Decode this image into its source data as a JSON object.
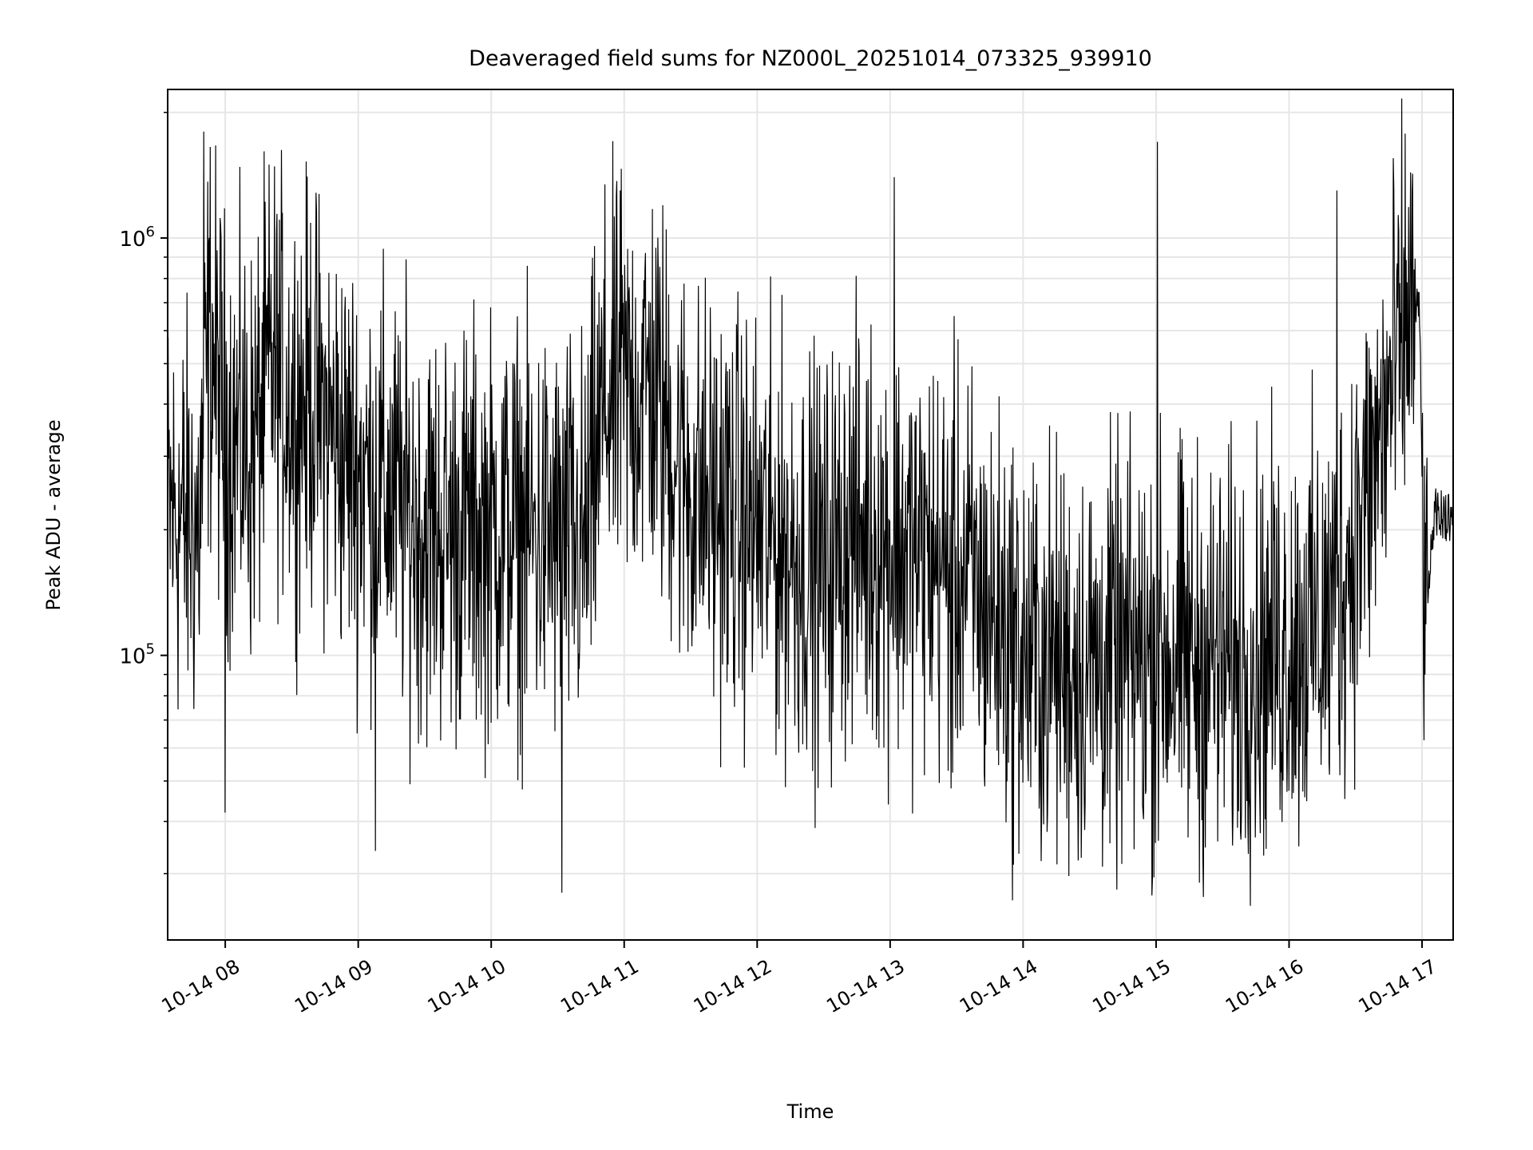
{
  "chart_data": {
    "type": "line",
    "title": "Deaveraged field sums for NZ000L_20251014_073325_939910",
    "xlabel": "Time",
    "ylabel": "Peak ADU - average",
    "yscale": "log",
    "ylim": [
      20800,
      2270000
    ],
    "xlim_hours": [
      7.567,
      17.234
    ],
    "grid": true,
    "x_tick_labels": [
      "10-14 08",
      "10-14 09",
      "10-14 10",
      "10-14 11",
      "10-14 12",
      "10-14 13",
      "10-14 14",
      "10-14 15",
      "10-14 16",
      "10-14 17"
    ],
    "x_tick_hours": [
      8,
      9,
      10,
      11,
      12,
      13,
      14,
      15,
      16,
      17
    ],
    "y_ticks": [
      {
        "value": 100000,
        "base": "10",
        "exp": "5"
      },
      {
        "value": 1000000,
        "base": "10",
        "exp": "6"
      }
    ],
    "series": [
      {
        "name": "field sums",
        "color": "#000000",
        "trend_hours": [
          7.57,
          7.8,
          7.88,
          8.0,
          8.2,
          8.35,
          8.5,
          8.65,
          8.9,
          9.5,
          10.2,
          10.7,
          10.85,
          11.2,
          11.5,
          12.0,
          12.5,
          12.7,
          13.3,
          13.6,
          14.0,
          14.5,
          15.0,
          15.6,
          16.3,
          16.6,
          16.9,
          16.98,
          17.02,
          17.1,
          17.23
        ],
        "trend_median": [
          220000,
          200000,
          600000,
          350000,
          300000,
          500000,
          400000,
          420000,
          300000,
          200000,
          200000,
          180000,
          400000,
          450000,
          250000,
          200000,
          160000,
          200000,
          170000,
          150000,
          100000,
          95000,
          100000,
          95000,
          120000,
          250000,
          650000,
          700000,
          120000,
          220000,
          210000
        ],
        "log10_noise_spread": 0.38,
        "notable_peaks": [
          [
            7.84,
            1800000
          ],
          [
            10.97,
            1300000
          ],
          [
            13.03,
            1400000
          ],
          [
            15.01,
            1700000
          ],
          [
            16.36,
            1300000
          ],
          [
            16.91,
            1000000
          ]
        ],
        "notable_minima": [
          [
            8.0,
            42000
          ],
          [
            9.13,
            34000
          ],
          [
            10.53,
            27000
          ],
          [
            13.46,
            48000
          ],
          [
            14.44,
            44000
          ]
        ]
      }
    ]
  },
  "colors": {
    "grid": "#e6e6e6",
    "axes": "#000000",
    "line": "#000000"
  }
}
